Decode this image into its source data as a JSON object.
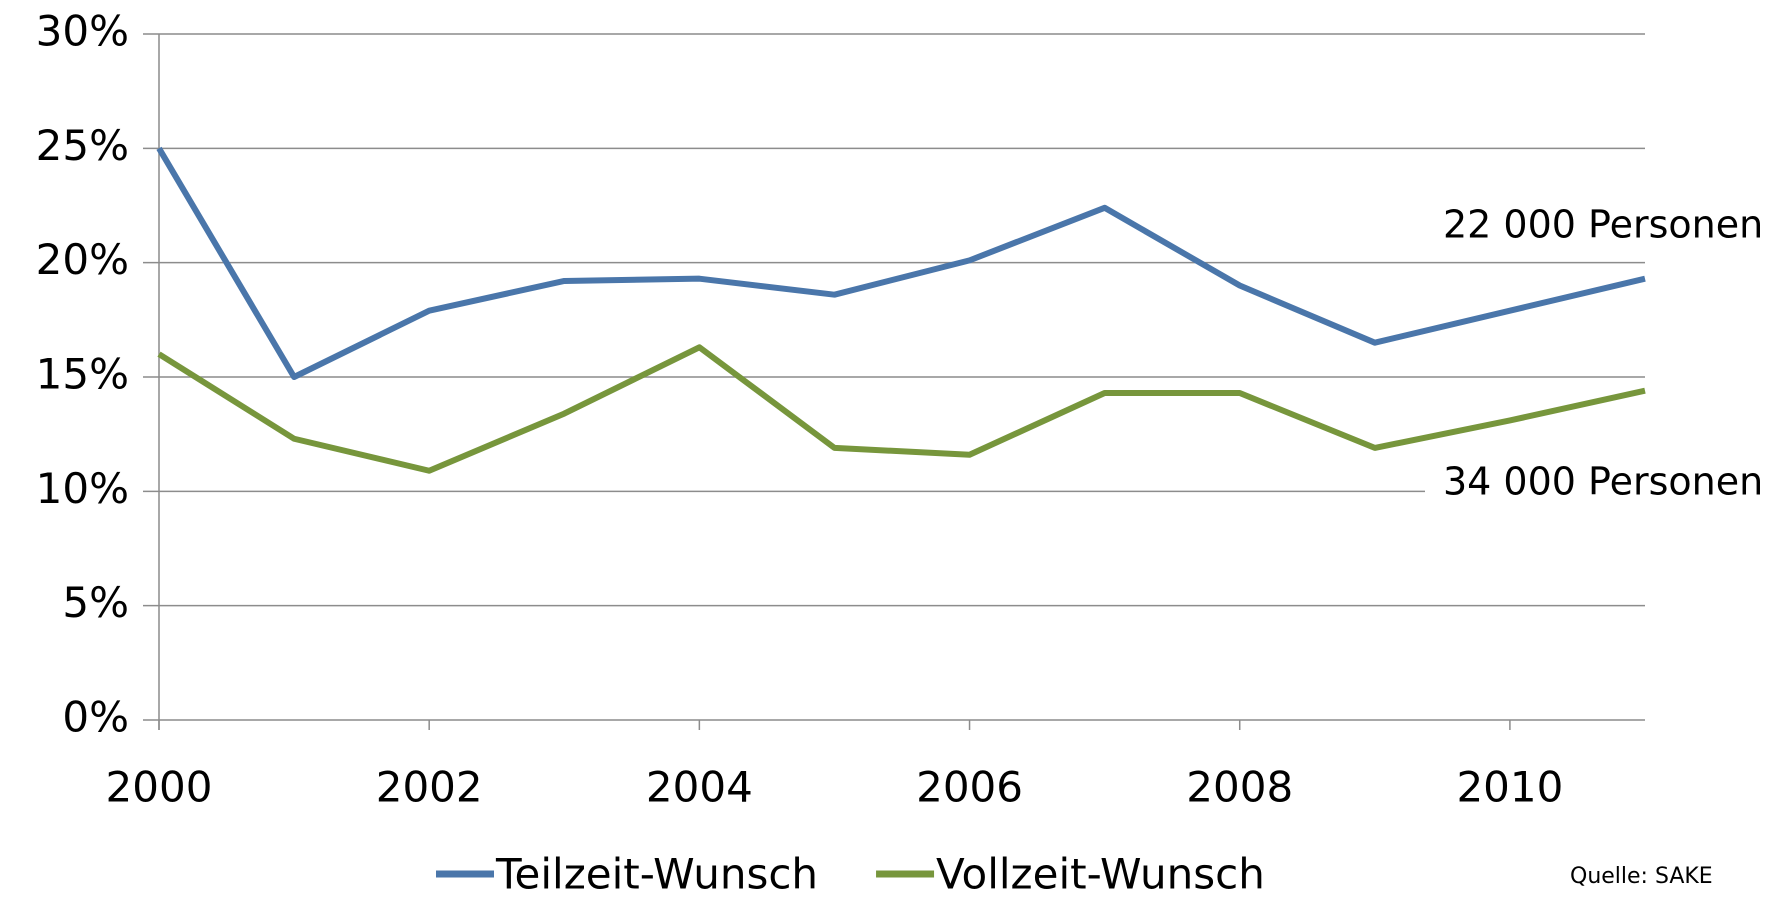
{
  "chart_data": {
    "type": "line",
    "x": [
      2000,
      2001,
      2002,
      2003,
      2004,
      2005,
      2006,
      2007,
      2008,
      2009,
      2010,
      2011
    ],
    "series": [
      {
        "name": "Teilzeit-Wunsch",
        "color": "#4a76aa",
        "values": [
          25,
          15,
          17.9,
          19.2,
          19.3,
          18.6,
          20.1,
          22.4,
          19,
          16.5,
          17.9,
          19.3
        ]
      },
      {
        "name": "Vollzeit-Wunsch",
        "color": "#77963c",
        "values": [
          16,
          12.3,
          10.9,
          13.4,
          16.3,
          11.9,
          11.6,
          14.3,
          14.3,
          11.9,
          13.1,
          14.4
        ]
      }
    ],
    "xlim": [
      2000,
      2011
    ],
    "xticks": [
      2000,
      2002,
      2004,
      2006,
      2008,
      2010
    ],
    "ylim": [
      0,
      30
    ],
    "yticks": [
      {
        "value": 0,
        "label": "0%"
      },
      {
        "value": 5,
        "label": "5%"
      },
      {
        "value": 10,
        "label": "10%"
      },
      {
        "value": 15,
        "label": "15%"
      },
      {
        "value": 20,
        "label": "20%"
      },
      {
        "value": 25,
        "label": "25%"
      },
      {
        "value": 30,
        "label": "30%"
      }
    ],
    "grid": true,
    "annotations": [
      "22 000 Personen",
      "34 000 Personen"
    ],
    "source": "Quelle: SAKE",
    "legend": "bottom"
  }
}
